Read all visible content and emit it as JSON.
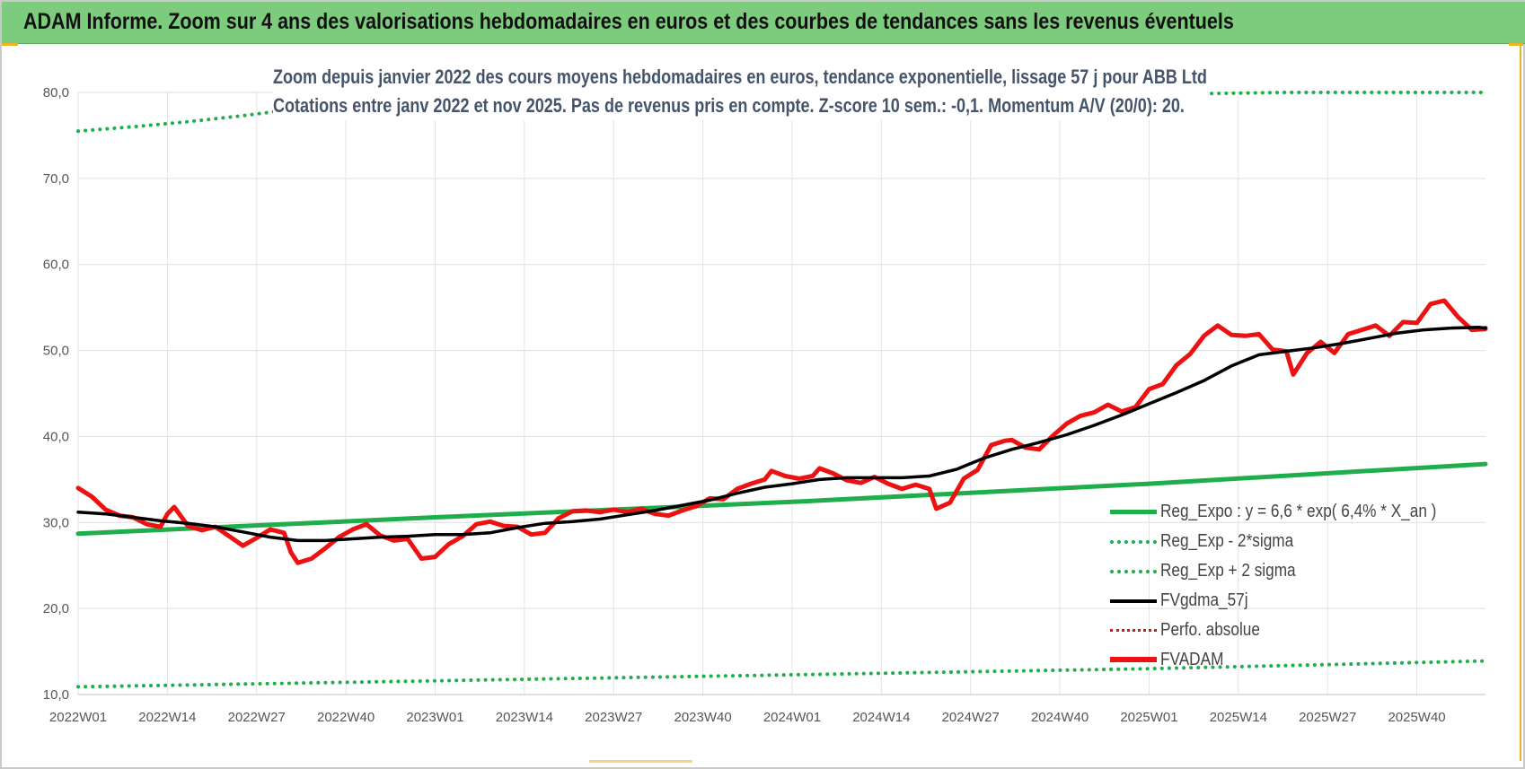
{
  "header": {
    "title": "ADAM Informe. Zoom sur 4 ans des valorisations hebdomadaires en euros et des courbes de tendances sans les revenus éventuels"
  },
  "chart_data": {
    "type": "line",
    "title_line1": "Zoom depuis janvier 2022 des cours moyens hebdomadaires en euros, tendance exponentielle, lissage 57 j pour ABB Ltd",
    "title_line2": "Cotations entre janv 2022 et nov 2025. Pas de revenus pris en compte. Z-score 10 sem.: -0,1. Momentum A/V (20/0): 20.",
    "xlabel": "",
    "ylabel": "",
    "ylim": [
      10,
      80
    ],
    "yticks": [
      "10,0",
      "20,0",
      "30,0",
      "40,0",
      "50,0",
      "60,0",
      "70,0",
      "80,0"
    ],
    "xticks": [
      "2022W01",
      "2022W14",
      "2022W27",
      "2022W40",
      "2023W01",
      "2023W14",
      "2023W27",
      "2023W40",
      "2024W01",
      "2024W14",
      "2024W27",
      "2024W40",
      "2025W01",
      "2025W14",
      "2025W27",
      "2025W40"
    ],
    "grid": "vertical and horizontal",
    "legend_position": "bottom-right",
    "weeks_total": 205,
    "series": [
      {
        "name": "Reg_Expo : y = 6,6 * exp( 6,4% *  X_an )",
        "style": "solid",
        "color": "#1fae4b",
        "points": [
          [
            0,
            28.7
          ],
          [
            52,
            30.6
          ],
          [
            104,
            32.4
          ],
          [
            156,
            34.5
          ],
          [
            205,
            36.8
          ]
        ]
      },
      {
        "name": "Reg_Exp - 2*sigma",
        "style": "dotted",
        "color": "#1fae4b",
        "points": [
          [
            0,
            10.9
          ],
          [
            52,
            11.6
          ],
          [
            104,
            12.3
          ],
          [
            156,
            13.0
          ],
          [
            205,
            13.9
          ]
        ]
      },
      {
        "name": "Reg_Exp + 2 sigma",
        "style": "dotted",
        "color": "#1fae4b",
        "points": [
          [
            0,
            75.5
          ],
          [
            8,
            76.0
          ],
          [
            16,
            76.6
          ],
          [
            24,
            77.3
          ],
          [
            30,
            77.9
          ],
          [
            34,
            78.3
          ],
          [
            176,
            80.0
          ],
          [
            205,
            80.0
          ]
        ]
      },
      {
        "name": "FVgdma_57j",
        "style": "solid",
        "color": "#000000",
        "points": [
          [
            0,
            31.2
          ],
          [
            4,
            31.0
          ],
          [
            8,
            30.6
          ],
          [
            12,
            30.2
          ],
          [
            16,
            29.9
          ],
          [
            20,
            29.5
          ],
          [
            24,
            28.9
          ],
          [
            28,
            28.3
          ],
          [
            32,
            27.9
          ],
          [
            36,
            27.9
          ],
          [
            40,
            28.1
          ],
          [
            44,
            28.3
          ],
          [
            48,
            28.4
          ],
          [
            52,
            28.6
          ],
          [
            56,
            28.6
          ],
          [
            60,
            28.8
          ],
          [
            64,
            29.4
          ],
          [
            68,
            29.9
          ],
          [
            72,
            30.1
          ],
          [
            76,
            30.4
          ],
          [
            80,
            30.9
          ],
          [
            84,
            31.4
          ],
          [
            88,
            32.0
          ],
          [
            92,
            32.6
          ],
          [
            96,
            33.4
          ],
          [
            100,
            34.1
          ],
          [
            104,
            34.5
          ],
          [
            108,
            35.0
          ],
          [
            112,
            35.2
          ],
          [
            116,
            35.2
          ],
          [
            120,
            35.2
          ],
          [
            124,
            35.4
          ],
          [
            128,
            36.2
          ],
          [
            132,
            37.5
          ],
          [
            136,
            38.5
          ],
          [
            140,
            39.3
          ],
          [
            144,
            40.2
          ],
          [
            148,
            41.3
          ],
          [
            152,
            42.5
          ],
          [
            156,
            43.8
          ],
          [
            160,
            45.1
          ],
          [
            164,
            46.5
          ],
          [
            168,
            48.2
          ],
          [
            172,
            49.5
          ],
          [
            176,
            49.9
          ],
          [
            180,
            50.3
          ],
          [
            184,
            50.8
          ],
          [
            188,
            51.4
          ],
          [
            192,
            52.0
          ],
          [
            196,
            52.4
          ],
          [
            200,
            52.6
          ],
          [
            204,
            52.7
          ],
          [
            208,
            52.6
          ]
        ]
      },
      {
        "name": "Perfo. absolue",
        "style": "dotted",
        "color": "#e01010",
        "points": []
      },
      {
        "name": "FVADAM",
        "style": "solid",
        "color": "#ee1111",
        "points": [
          [
            0,
            34.0
          ],
          [
            2,
            33.0
          ],
          [
            4,
            31.5
          ],
          [
            6,
            30.8
          ],
          [
            8,
            30.6
          ],
          [
            10,
            29.8
          ],
          [
            12,
            29.5
          ],
          [
            13,
            31.0
          ],
          [
            14,
            31.8
          ],
          [
            16,
            29.6
          ],
          [
            18,
            29.1
          ],
          [
            20,
            29.5
          ],
          [
            22,
            28.4
          ],
          [
            24,
            27.3
          ],
          [
            26,
            28.2
          ],
          [
            28,
            29.2
          ],
          [
            30,
            28.8
          ],
          [
            31,
            26.5
          ],
          [
            32,
            25.3
          ],
          [
            34,
            25.8
          ],
          [
            36,
            27.0
          ],
          [
            38,
            28.3
          ],
          [
            40,
            29.2
          ],
          [
            42,
            29.8
          ],
          [
            44,
            28.5
          ],
          [
            46,
            27.9
          ],
          [
            48,
            28.1
          ],
          [
            50,
            25.8
          ],
          [
            52,
            26.0
          ],
          [
            54,
            27.5
          ],
          [
            56,
            28.4
          ],
          [
            58,
            29.8
          ],
          [
            60,
            30.1
          ],
          [
            62,
            29.6
          ],
          [
            64,
            29.5
          ],
          [
            66,
            28.6
          ],
          [
            68,
            28.8
          ],
          [
            70,
            30.5
          ],
          [
            72,
            31.3
          ],
          [
            74,
            31.4
          ],
          [
            76,
            31.2
          ],
          [
            78,
            31.5
          ],
          [
            80,
            31.2
          ],
          [
            82,
            31.6
          ],
          [
            84,
            31.0
          ],
          [
            86,
            30.8
          ],
          [
            88,
            31.4
          ],
          [
            90,
            31.9
          ],
          [
            92,
            32.8
          ],
          [
            94,
            32.7
          ],
          [
            96,
            33.9
          ],
          [
            98,
            34.5
          ],
          [
            100,
            35.0
          ],
          [
            101,
            36.0
          ],
          [
            103,
            35.4
          ],
          [
            105,
            35.1
          ],
          [
            107,
            35.4
          ],
          [
            108,
            36.3
          ],
          [
            110,
            35.7
          ],
          [
            112,
            34.9
          ],
          [
            114,
            34.6
          ],
          [
            116,
            35.3
          ],
          [
            118,
            34.5
          ],
          [
            120,
            33.9
          ],
          [
            122,
            34.4
          ],
          [
            124,
            33.9
          ],
          [
            125,
            31.6
          ],
          [
            127,
            32.3
          ],
          [
            129,
            35.1
          ],
          [
            131,
            36.1
          ],
          [
            133,
            39.0
          ],
          [
            135,
            39.5
          ],
          [
            136,
            39.6
          ],
          [
            138,
            38.7
          ],
          [
            140,
            38.5
          ],
          [
            142,
            40.1
          ],
          [
            144,
            41.5
          ],
          [
            146,
            42.4
          ],
          [
            148,
            42.8
          ],
          [
            150,
            43.7
          ],
          [
            152,
            42.9
          ],
          [
            154,
            43.4
          ],
          [
            156,
            45.5
          ],
          [
            158,
            46.1
          ],
          [
            160,
            48.3
          ],
          [
            162,
            49.6
          ],
          [
            164,
            51.7
          ],
          [
            166,
            52.9
          ],
          [
            168,
            51.8
          ],
          [
            170,
            51.7
          ],
          [
            172,
            51.9
          ],
          [
            174,
            50.1
          ],
          [
            176,
            49.9
          ],
          [
            177,
            47.2
          ],
          [
            179,
            49.7
          ],
          [
            181,
            51.0
          ],
          [
            183,
            49.7
          ],
          [
            185,
            51.9
          ],
          [
            187,
            52.4
          ],
          [
            189,
            52.9
          ],
          [
            191,
            51.7
          ],
          [
            193,
            53.3
          ],
          [
            195,
            53.2
          ],
          [
            197,
            55.4
          ],
          [
            199,
            55.8
          ],
          [
            201,
            53.9
          ],
          [
            203,
            52.4
          ],
          [
            205,
            52.5
          ],
          [
            207,
            52.6
          ]
        ]
      }
    ]
  },
  "legend": {
    "items": [
      {
        "label": "Reg_Expo : y = 6,6 * exp( 6,4% *  X_an )"
      },
      {
        "label": "Reg_Exp - 2*sigma"
      },
      {
        "label": "Reg_Exp + 2 sigma"
      },
      {
        "label": "FVgdma_57j"
      },
      {
        "label": "Perfo. absolue"
      },
      {
        "label": "FVADAM"
      }
    ]
  }
}
